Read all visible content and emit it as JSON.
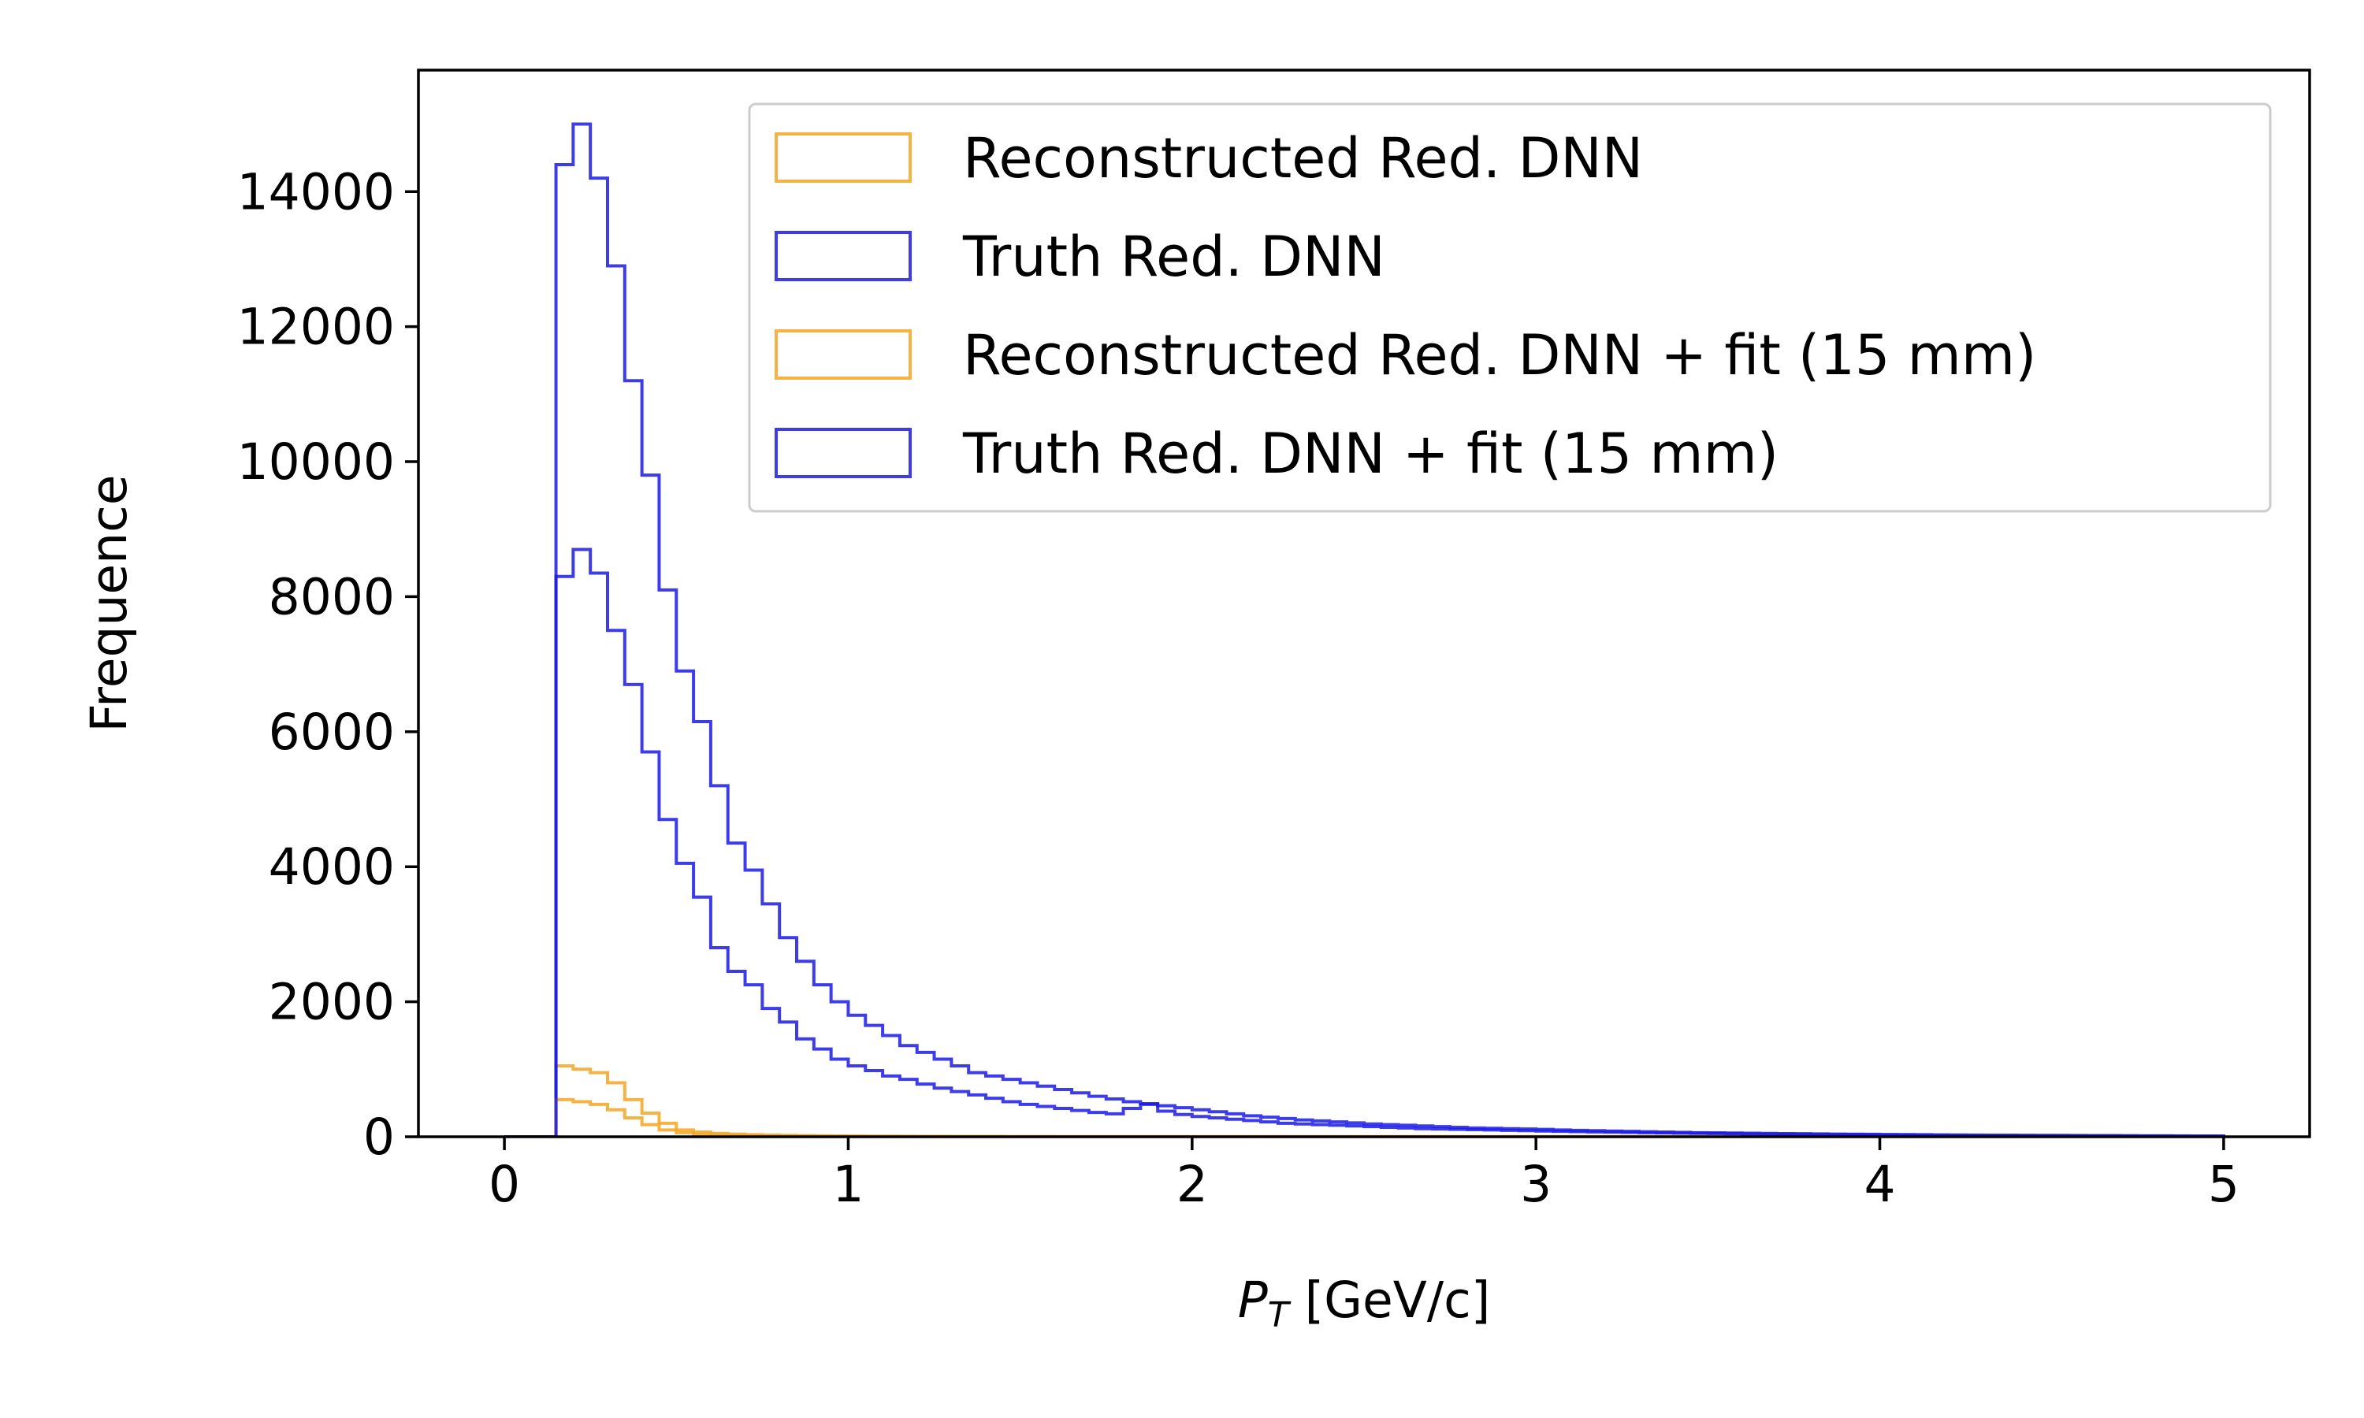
{
  "chart_data": {
    "type": "histogram",
    "xlabel_symbol": "P",
    "xlabel_subscript": "T",
    "xlabel_unit": " [GeV/c]",
    "ylabel": "Frequence",
    "xlim": [
      -0.25,
      5.25
    ],
    "ylim": [
      0,
      15800
    ],
    "xticks": [
      0,
      1,
      2,
      3,
      4,
      5
    ],
    "yticks": [
      0,
      2000,
      4000,
      6000,
      8000,
      10000,
      12000,
      14000
    ],
    "grid": false,
    "legend_position": "top-right",
    "bin_edges_start": 0,
    "bin_width": 0.05,
    "series": [
      {
        "name": "Reconstructed Red. DNN",
        "color": "#f5a623",
        "values": [
          0,
          0,
          0,
          1050,
          1000,
          950,
          800,
          550,
          350,
          200,
          100,
          70,
          50,
          40,
          30,
          25,
          20,
          18,
          15,
          12,
          10,
          9,
          8,
          7,
          6,
          5,
          5,
          4,
          4,
          3,
          3,
          3,
          2,
          2,
          2,
          2,
          2,
          2,
          1,
          1,
          1,
          1,
          1,
          1,
          1,
          1,
          1,
          1,
          1,
          1,
          1,
          1,
          1,
          1,
          1,
          1,
          1,
          1,
          1,
          1,
          1,
          1,
          1,
          1,
          1,
          1,
          1,
          1,
          1,
          1,
          1,
          1,
          1,
          1,
          1,
          1,
          1,
          1,
          1,
          1,
          1,
          1,
          1,
          1,
          1,
          1,
          1,
          1,
          1,
          1,
          1,
          1,
          1,
          1,
          1,
          1,
          1,
          1,
          1,
          1
        ]
      },
      {
        "name": "Truth Red. DNN",
        "color": "#1a1ae6",
        "values": [
          0,
          0,
          0,
          14400,
          15000,
          14200,
          12900,
          11200,
          9800,
          8100,
          6900,
          6150,
          5200,
          4350,
          3950,
          3450,
          2950,
          2600,
          2250,
          2000,
          1800,
          1650,
          1500,
          1350,
          1250,
          1150,
          1050,
          950,
          900,
          850,
          800,
          750,
          700,
          650,
          600,
          560,
          520,
          490,
          460,
          430,
          400,
          370,
          340,
          310,
          290,
          270,
          250,
          235,
          220,
          205,
          190,
          180,
          170,
          160,
          150,
          140,
          130,
          125,
          120,
          115,
          110,
          100,
          95,
          90,
          85,
          80,
          75,
          70,
          65,
          60,
          58,
          55,
          52,
          50,
          47,
          45,
          42,
          40,
          38,
          36,
          34,
          32,
          30,
          28,
          26,
          25,
          24,
          23,
          22,
          21,
          20,
          19,
          18,
          17,
          16,
          15,
          14,
          13,
          12,
          11
        ]
      },
      {
        "name": "Reconstructed Red. DNN + fit (15 mm)",
        "color": "#f5a623",
        "values": [
          0,
          0,
          0,
          550,
          520,
          480,
          400,
          280,
          180,
          100,
          60,
          40,
          30,
          25,
          20,
          16,
          13,
          11,
          9,
          8,
          7,
          6,
          5,
          5,
          4,
          4,
          3,
          3,
          3,
          2,
          2,
          2,
          2,
          2,
          1,
          1,
          1,
          1,
          1,
          1,
          1,
          1,
          1,
          1,
          1,
          1,
          1,
          1,
          1,
          1,
          1,
          1,
          1,
          1,
          1,
          1,
          1,
          1,
          1,
          1,
          1,
          1,
          1,
          1,
          1,
          1,
          1,
          1,
          1,
          1,
          1,
          1,
          1,
          1,
          1,
          1,
          1,
          1,
          1,
          1,
          1,
          1,
          1,
          1,
          1,
          1,
          1,
          1,
          1,
          1,
          1,
          1,
          1,
          1,
          1,
          1,
          1,
          1,
          1,
          1
        ]
      },
      {
        "name": "Truth Red. DNN + fit (15 mm)",
        "color": "#1a1ae6",
        "values": [
          0,
          0,
          0,
          8300,
          8700,
          8350,
          7500,
          6700,
          5700,
          4700,
          4050,
          3550,
          2800,
          2450,
          2250,
          1900,
          1700,
          1450,
          1300,
          1150,
          1050,
          980,
          900,
          850,
          780,
          720,
          670,
          620,
          570,
          520,
          480,
          450,
          420,
          390,
          360,
          340,
          420,
          480,
          380,
          330,
          300,
          280,
          260,
          240,
          220,
          200,
          190,
          180,
          170,
          160,
          150,
          140,
          130,
          120,
          115,
          110,
          105,
          100,
          95,
          90,
          85,
          80,
          76,
          72,
          68,
          64,
          60,
          57,
          54,
          51,
          48,
          45,
          42,
          40,
          38,
          36,
          34,
          32,
          30,
          28,
          26,
          25,
          24,
          23,
          22,
          21,
          20,
          19,
          18,
          17,
          16,
          15,
          14,
          13,
          12,
          11,
          10,
          9,
          8,
          7
        ]
      }
    ]
  }
}
